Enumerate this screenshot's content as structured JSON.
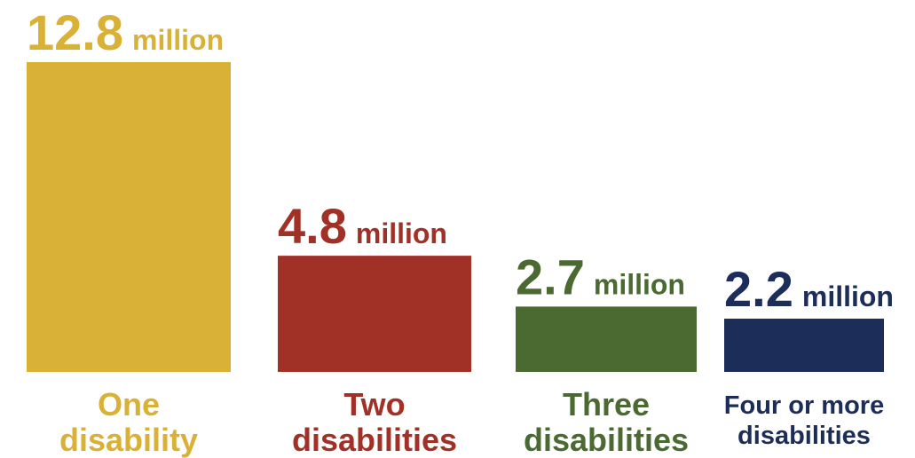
{
  "chart_data": {
    "type": "bar",
    "title": "",
    "xlabel": "",
    "ylabel": "",
    "categories": [
      "One disability",
      "Two disabilities",
      "Three disabilities",
      "Four or more disabilities"
    ],
    "category_lines": [
      [
        "One",
        "disability"
      ],
      [
        "Two",
        "disabilities"
      ],
      [
        "Three",
        "disabilities"
      ],
      [
        "Four or more",
        "disabilities"
      ]
    ],
    "values": [
      12.8,
      4.8,
      2.7,
      2.2
    ],
    "value_labels": [
      "12.8",
      "4.8",
      "2.7",
      "2.2"
    ],
    "unit": "million",
    "colors": [
      "#d8b136",
      "#a13127",
      "#4a6a32",
      "#1d2d5a"
    ],
    "ylim": [
      0,
      12.8
    ],
    "grid": false,
    "legend": "none"
  }
}
